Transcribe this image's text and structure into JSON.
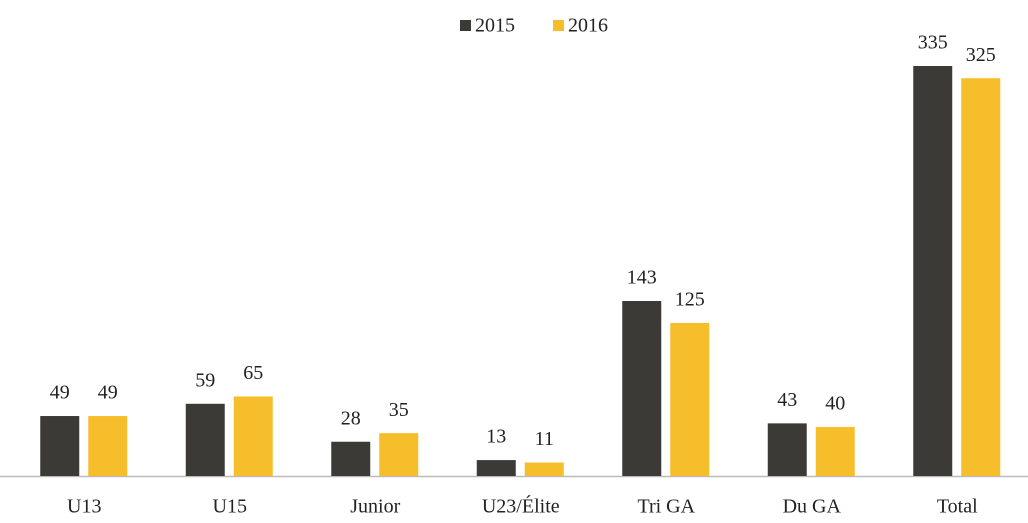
{
  "chart_data": {
    "type": "bar",
    "categories": [
      "U13",
      "U15",
      "Junior",
      "U23/Élite",
      "Tri GA",
      "Du GA",
      "Total"
    ],
    "series": [
      {
        "name": "2015",
        "color": "#3b3a36",
        "values": [
          49,
          59,
          28,
          13,
          143,
          43,
          335
        ]
      },
      {
        "name": "2016",
        "color": "#f6be2b",
        "values": [
          49,
          65,
          35,
          11,
          125,
          40,
          325
        ]
      }
    ],
    "legend": "top"
  }
}
